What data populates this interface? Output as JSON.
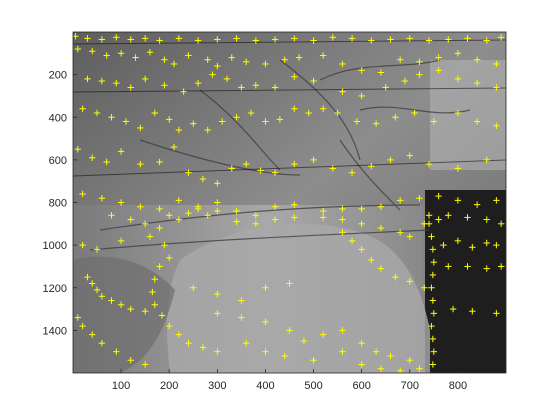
{
  "chart_data": {
    "type": "scatter",
    "background": "grayscale photograph of a tree shadow cast on a wall and pavement",
    "xlim": [
      0,
      900
    ],
    "ylim": [
      1600,
      0
    ],
    "y_axis_reversed": true,
    "xticks": [
      100,
      200,
      300,
      400,
      500,
      600,
      700,
      800
    ],
    "yticks": [
      200,
      400,
      600,
      800,
      1000,
      1200,
      1400
    ],
    "grid": false,
    "marker": "+",
    "marker_color": "#ffff00",
    "series": [
      {
        "points": [
          [
            5,
            20
          ],
          [
            30,
            30
          ],
          [
            60,
            35
          ],
          [
            90,
            25
          ],
          [
            120,
            35
          ],
          [
            150,
            30
          ],
          [
            180,
            40
          ],
          [
            220,
            30
          ],
          [
            260,
            40
          ],
          [
            300,
            35
          ],
          [
            340,
            30
          ],
          [
            380,
            40
          ],
          [
            420,
            35
          ],
          [
            460,
            30
          ],
          [
            500,
            40
          ],
          [
            540,
            25
          ],
          [
            580,
            30
          ],
          [
            620,
            40
          ],
          [
            660,
            35
          ],
          [
            700,
            30
          ],
          [
            740,
            40
          ],
          [
            780,
            35
          ],
          [
            820,
            30
          ],
          [
            860,
            40
          ],
          [
            890,
            25
          ],
          [
            10,
            80
          ],
          [
            40,
            90
          ],
          [
            70,
            110
          ],
          [
            100,
            100
          ],
          [
            130,
            120
          ],
          [
            160,
            95
          ],
          [
            190,
            130
          ],
          [
            210,
            150
          ],
          [
            240,
            110
          ],
          [
            280,
            130
          ],
          [
            300,
            160
          ],
          [
            330,
            120
          ],
          [
            360,
            140
          ],
          [
            400,
            150
          ],
          [
            440,
            130
          ],
          [
            470,
            120
          ],
          [
            520,
            110
          ],
          [
            560,
            150
          ],
          [
            600,
            180
          ],
          [
            640,
            190
          ],
          [
            680,
            130
          ],
          [
            720,
            140
          ],
          [
            760,
            120
          ],
          [
            800,
            100
          ],
          [
            840,
            130
          ],
          [
            880,
            150
          ],
          [
            30,
            220
          ],
          [
            60,
            230
          ],
          [
            90,
            240
          ],
          [
            120,
            260
          ],
          [
            150,
            220
          ],
          [
            190,
            250
          ],
          [
            230,
            280
          ],
          [
            260,
            240
          ],
          [
            290,
            200
          ],
          [
            320,
            220
          ],
          [
            350,
            260
          ],
          [
            380,
            250
          ],
          [
            420,
            260
          ],
          [
            460,
            210
          ],
          [
            500,
            230
          ],
          [
            560,
            280
          ],
          [
            600,
            300
          ],
          [
            650,
            260
          ],
          [
            690,
            230
          ],
          [
            720,
            200
          ],
          [
            760,
            180
          ],
          [
            800,
            220
          ],
          [
            840,
            240
          ],
          [
            880,
            260
          ],
          [
            20,
            360
          ],
          [
            50,
            380
          ],
          [
            80,
            400
          ],
          [
            110,
            420
          ],
          [
            140,
            450
          ],
          [
            170,
            380
          ],
          [
            200,
            410
          ],
          [
            220,
            460
          ],
          [
            250,
            430
          ],
          [
            280,
            460
          ],
          [
            310,
            420
          ],
          [
            340,
            400
          ],
          [
            370,
            380
          ],
          [
            400,
            420
          ],
          [
            430,
            410
          ],
          [
            460,
            360
          ],
          [
            490,
            380
          ],
          [
            520,
            360
          ],
          [
            550,
            380
          ],
          [
            590,
            420
          ],
          [
            630,
            430
          ],
          [
            670,
            400
          ],
          [
            710,
            380
          ],
          [
            750,
            420
          ],
          [
            800,
            380
          ],
          [
            840,
            420
          ],
          [
            880,
            440
          ],
          [
            10,
            550
          ],
          [
            40,
            590
          ],
          [
            70,
            610
          ],
          [
            100,
            560
          ],
          [
            140,
            620
          ],
          [
            180,
            610
          ],
          [
            210,
            540
          ],
          [
            240,
            660
          ],
          [
            270,
            690
          ],
          [
            300,
            710
          ],
          [
            330,
            640
          ],
          [
            360,
            620
          ],
          [
            390,
            650
          ],
          [
            420,
            660
          ],
          [
            460,
            620
          ],
          [
            500,
            600
          ],
          [
            540,
            640
          ],
          [
            580,
            660
          ],
          [
            620,
            630
          ],
          [
            660,
            600
          ],
          [
            700,
            580
          ],
          [
            740,
            620
          ],
          [
            800,
            640
          ],
          [
            860,
            600
          ],
          [
            20,
            760
          ],
          [
            60,
            780
          ],
          [
            100,
            800
          ],
          [
            140,
            820
          ],
          [
            180,
            830
          ],
          [
            220,
            790
          ],
          [
            260,
            820
          ],
          [
            300,
            800
          ],
          [
            340,
            840
          ],
          [
            380,
            860
          ],
          [
            420,
            820
          ],
          [
            460,
            810
          ],
          [
            520,
            840
          ],
          [
            560,
            830
          ],
          [
            600,
            830
          ],
          [
            640,
            820
          ],
          [
            680,
            790
          ],
          [
            720,
            780
          ],
          [
            760,
            770
          ],
          [
            800,
            790
          ],
          [
            840,
            810
          ],
          [
            880,
            790
          ],
          [
            80,
            860
          ],
          [
            120,
            880
          ],
          [
            150,
            900
          ],
          [
            180,
            920
          ],
          [
            200,
            860
          ],
          [
            220,
            880
          ],
          [
            240,
            850
          ],
          [
            260,
            830
          ],
          [
            280,
            860
          ],
          [
            300,
            840
          ],
          [
            340,
            890
          ],
          [
            380,
            900
          ],
          [
            420,
            880
          ],
          [
            460,
            870
          ],
          [
            520,
            870
          ],
          [
            560,
            880
          ],
          [
            600,
            900
          ],
          [
            640,
            920
          ],
          [
            680,
            940
          ],
          [
            700,
            960
          ],
          [
            730,
            900
          ],
          [
            740,
            860
          ],
          [
            760,
            880
          ],
          [
            780,
            860
          ],
          [
            820,
            870
          ],
          [
            860,
            880
          ],
          [
            890,
            900
          ],
          [
            20,
            1000
          ],
          [
            50,
            1020
          ],
          [
            100,
            980
          ],
          [
            160,
            960
          ],
          [
            190,
            1000
          ],
          [
            200,
            1060
          ],
          [
            180,
            1100
          ],
          [
            170,
            1160
          ],
          [
            165,
            1220
          ],
          [
            170,
            1280
          ],
          [
            185,
            1330
          ],
          [
            200,
            1380
          ],
          [
            220,
            1420
          ],
          [
            240,
            1460
          ],
          [
            270,
            1480
          ],
          [
            300,
            1500
          ],
          [
            560,
            940
          ],
          [
            580,
            980
          ],
          [
            600,
            1020
          ],
          [
            620,
            1070
          ],
          [
            640,
            1110
          ],
          [
            670,
            1150
          ],
          [
            700,
            1170
          ],
          [
            730,
            1200
          ],
          [
            740,
            900
          ],
          [
            745,
            960
          ],
          [
            748,
            1020
          ],
          [
            750,
            1080
          ],
          [
            748,
            1140
          ],
          [
            745,
            1200
          ],
          [
            748,
            1260
          ],
          [
            750,
            1320
          ],
          [
            745,
            1380
          ],
          [
            748,
            1440
          ],
          [
            750,
            1500
          ],
          [
            748,
            1560
          ],
          [
            770,
            1000
          ],
          [
            800,
            980
          ],
          [
            830,
            1010
          ],
          [
            860,
            990
          ],
          [
            880,
            1000
          ],
          [
            780,
            1100
          ],
          [
            820,
            1100
          ],
          [
            860,
            1110
          ],
          [
            890,
            1100
          ],
          [
            790,
            1300
          ],
          [
            830,
            1310
          ],
          [
            880,
            1320
          ],
          [
            30,
            1150
          ],
          [
            40,
            1180
          ],
          [
            50,
            1210
          ],
          [
            60,
            1240
          ],
          [
            80,
            1260
          ],
          [
            100,
            1280
          ],
          [
            120,
            1300
          ],
          [
            150,
            1310
          ],
          [
            10,
            1340
          ],
          [
            20,
            1380
          ],
          [
            40,
            1420
          ],
          [
            60,
            1460
          ],
          [
            90,
            1500
          ],
          [
            120,
            1540
          ],
          [
            150,
            1560
          ],
          [
            250,
            1200
          ],
          [
            300,
            1230
          ],
          [
            350,
            1260
          ],
          [
            400,
            1200
          ],
          [
            450,
            1180
          ],
          [
            300,
            1320
          ],
          [
            350,
            1340
          ],
          [
            400,
            1360
          ],
          [
            450,
            1400
          ],
          [
            480,
            1450
          ],
          [
            520,
            1420
          ],
          [
            560,
            1400
          ],
          [
            600,
            1460
          ],
          [
            630,
            1500
          ],
          [
            660,
            1520
          ],
          [
            700,
            1540
          ],
          [
            360,
            1460
          ],
          [
            400,
            1500
          ],
          [
            440,
            1520
          ],
          [
            500,
            1540
          ],
          [
            560,
            1500
          ],
          [
            600,
            1560
          ],
          [
            640,
            1580
          ],
          [
            680,
            1590
          ],
          [
            720,
            1580
          ]
        ]
      }
    ]
  }
}
